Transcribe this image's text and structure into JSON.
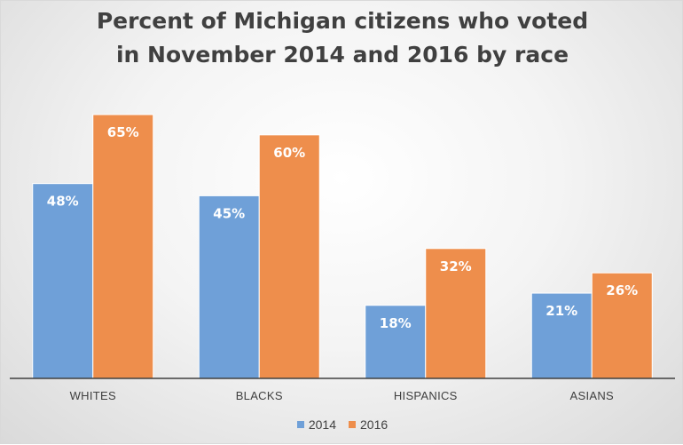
{
  "chart_data": {
    "type": "bar",
    "title_lines": [
      "Percent of Michigan citizens who voted",
      "in November 2014 and 2016 by race"
    ],
    "categories": [
      "WHITES",
      "BLACKS",
      "HISPANICS",
      "ASIANS"
    ],
    "series": [
      {
        "name": "2014",
        "color": "#6fa0d8",
        "values": [
          48,
          45,
          18,
          21
        ],
        "labels": [
          "48%",
          "45%",
          "18%",
          "21%"
        ]
      },
      {
        "name": "2016",
        "color": "#ee8e4c",
        "values": [
          65,
          60,
          32,
          26
        ],
        "labels": [
          "65%",
          "60%",
          "32%",
          "26%"
        ]
      }
    ],
    "ylim": [
      0,
      70
    ],
    "grid": false,
    "legend_position": "bottom"
  }
}
